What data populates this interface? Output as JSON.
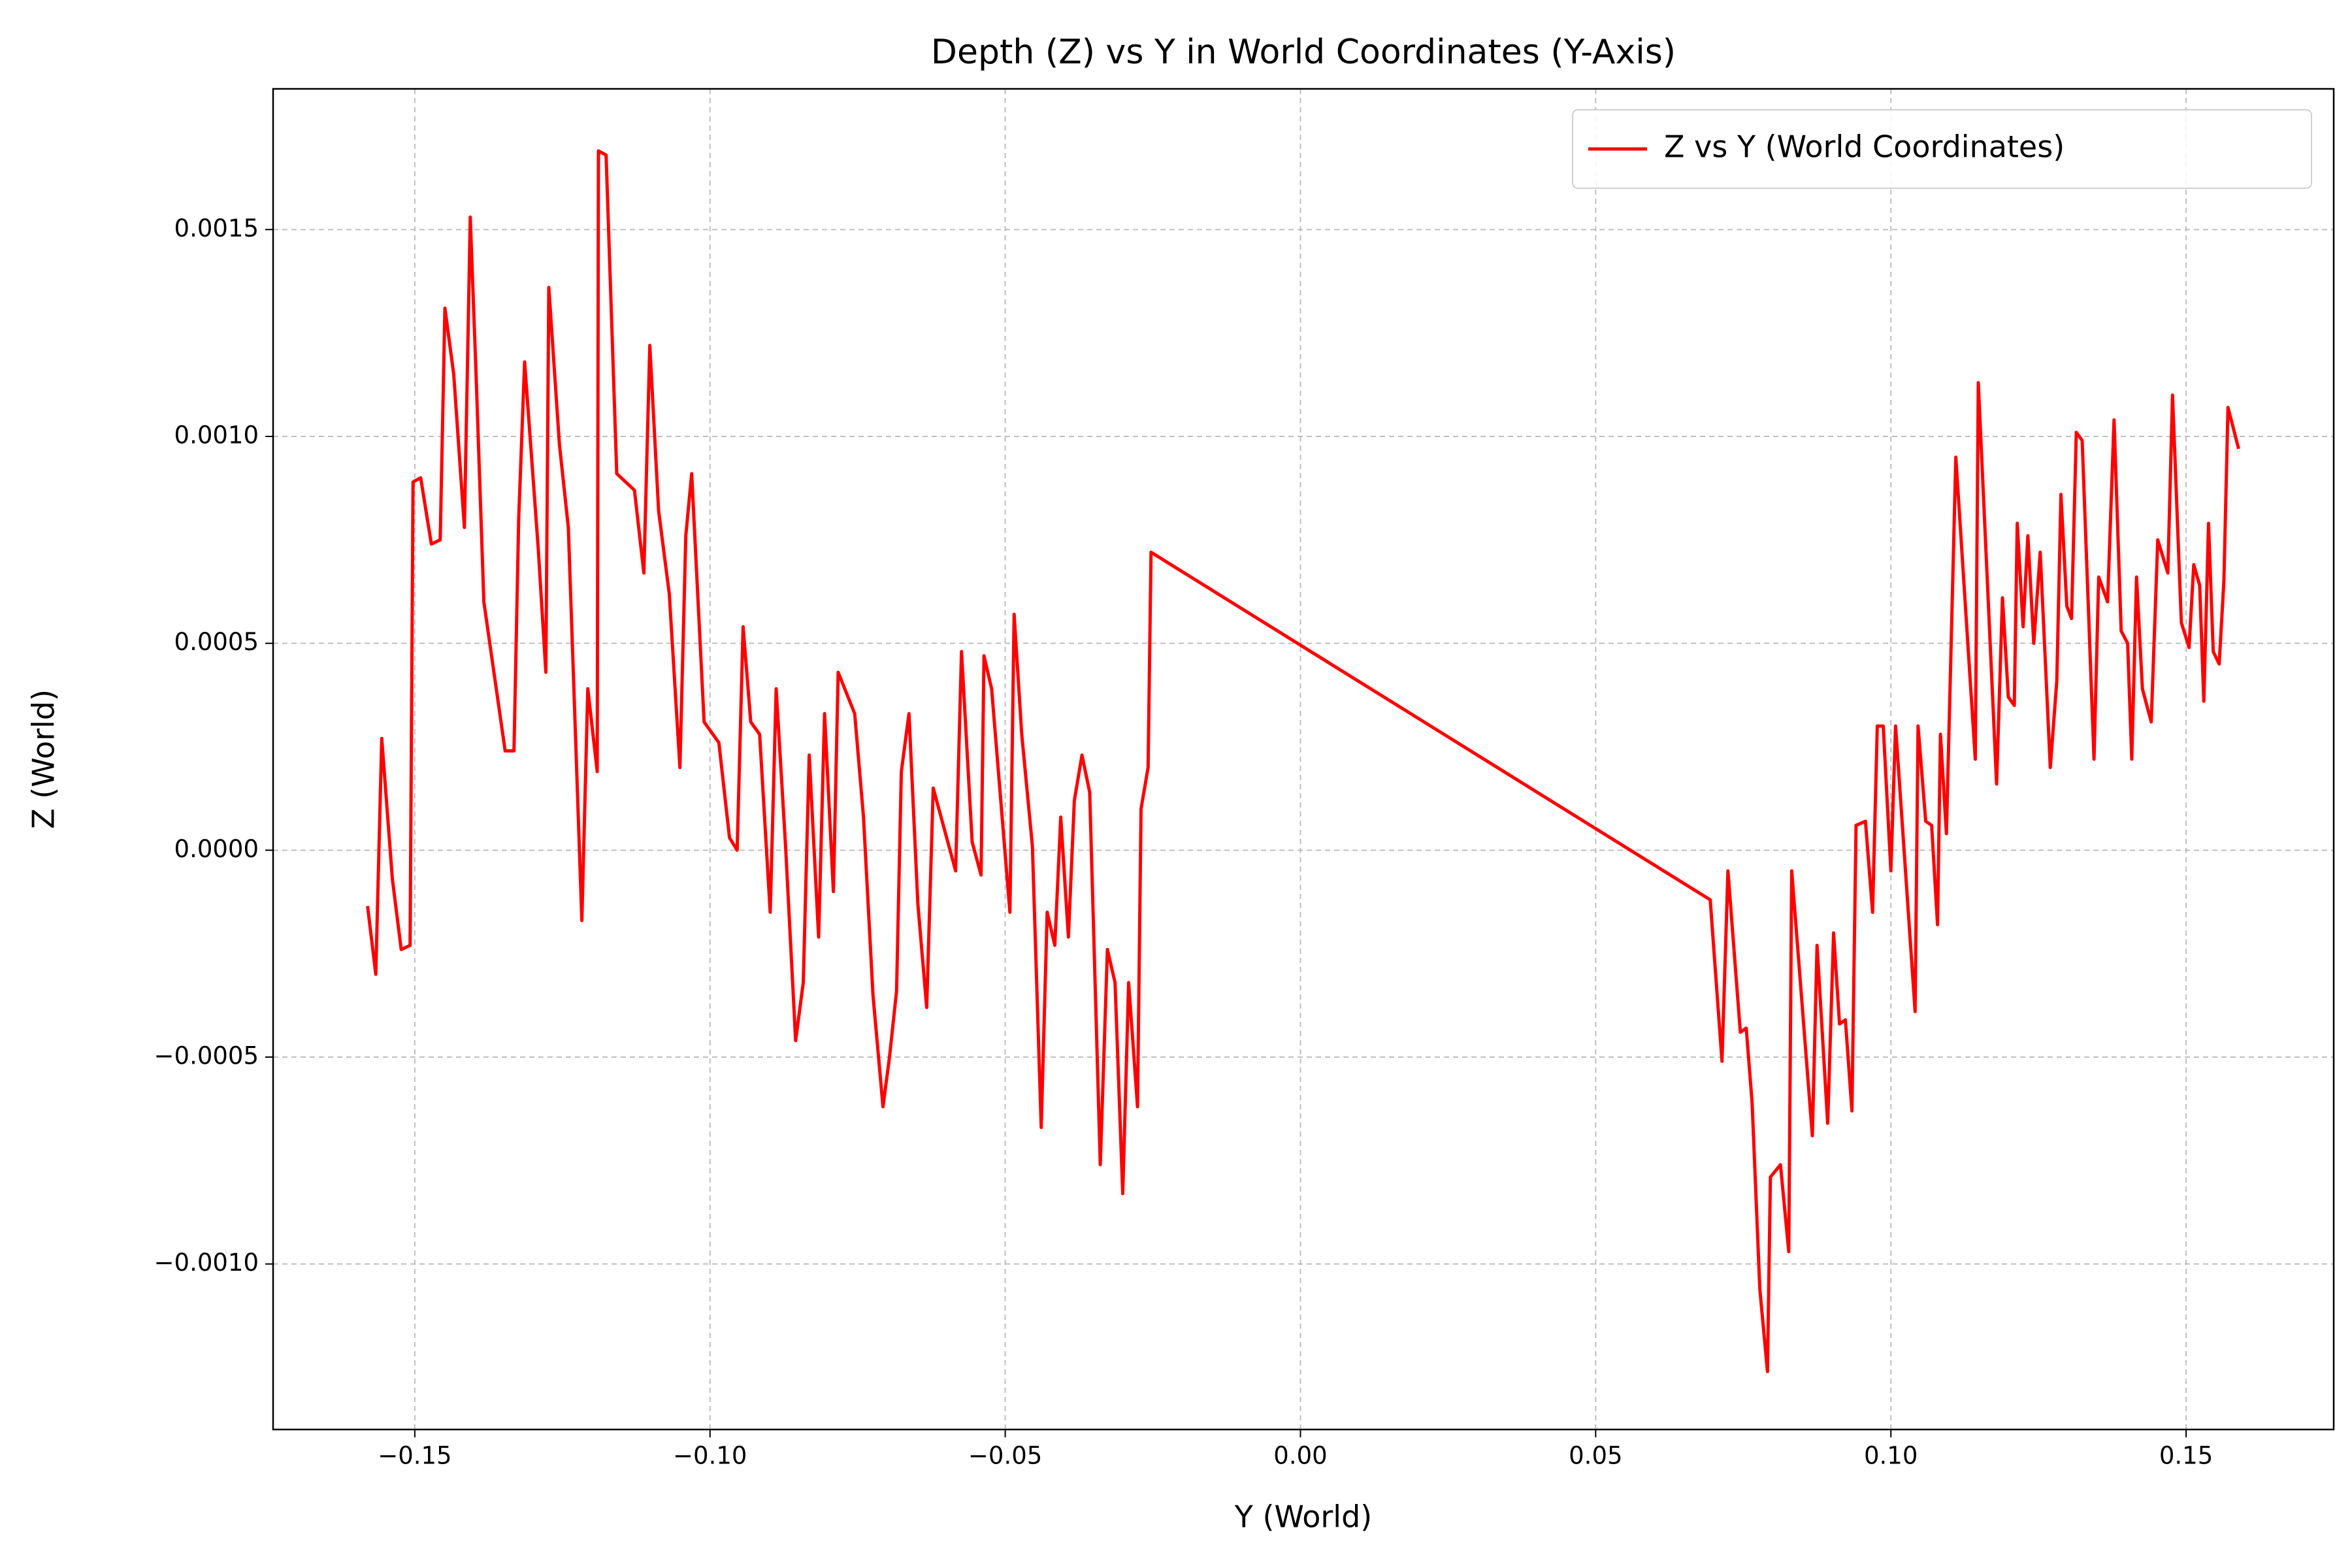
{
  "chart_data": {
    "type": "line",
    "title": "Depth (Z) vs Y in World Coordinates (Y-Axis)",
    "x_label": "Y (World)",
    "y_label": "Z (World)",
    "legend": "upper right",
    "grid": true,
    "xlim": [
      -0.174,
      0.175
    ],
    "ylim": [
      -0.0014,
      0.00184
    ],
    "xticks": [
      {
        "value": -0.15,
        "label": "−0.15"
      },
      {
        "value": -0.1,
        "label": "−0.10"
      },
      {
        "value": -0.05,
        "label": "−0.05"
      },
      {
        "value": 0,
        "label": "0.00"
      },
      0.05,
      {
        "value": 0.1,
        "label": "0.10"
      },
      0.15
    ],
    "yticks": [
      {
        "value": -0.001,
        "label": "−0.0010"
      },
      {
        "value": -0.0005,
        "label": "−0.0005"
      },
      {
        "value": 0,
        "label": "0.0000"
      },
      0.0005,
      {
        "value": 0.001,
        "label": "0.0010"
      },
      0.0015
    ],
    "x": [
      -0.158,
      -0.1566,
      -0.1556,
      -0.1538,
      -0.1523,
      -0.1508,
      -0.1503,
      -0.149,
      -0.1472,
      -0.1457,
      -0.1449,
      -0.1434,
      -0.1416,
      -0.1406,
      -0.1396,
      -0.1383,
      -0.1347,
      -0.1332,
      -0.1324,
      -0.1314,
      -0.1291,
      -0.1278,
      -0.1273,
      -0.1255,
      -0.124,
      -0.1217,
      -0.1207,
      -0.1191,
      -0.1189,
      -0.1176,
      -0.1158,
      -0.1128,
      -0.1112,
      -0.1102,
      -0.1087,
      -0.1069,
      -0.1051,
      -0.1041,
      -0.1031,
      -0.101,
      -0.0985,
      -0.0967,
      -0.0954,
      -0.0944,
      -0.0931,
      -0.0916,
      -0.0898,
      -0.0888,
      -0.0872,
      -0.0855,
      -0.0842,
      -0.0832,
      -0.0816,
      -0.0806,
      -0.0791,
      -0.0783,
      -0.0755,
      -0.074,
      -0.0724,
      -0.0707,
      -0.0696,
      -0.0684,
      -0.0676,
      -0.0663,
      -0.0648,
      -0.0633,
      -0.0622,
      -0.0584,
      -0.0574,
      -0.0556,
      -0.0541,
      -0.0536,
      -0.0523,
      -0.0492,
      -0.0485,
      -0.0472,
      -0.0454,
      -0.0439,
      -0.0429,
      -0.0416,
      -0.0406,
      -0.0393,
      -0.0383,
      -0.037,
      -0.0357,
      -0.0339,
      -0.0327,
      -0.0314,
      -0.0301,
      -0.0291,
      -0.0276,
      -0.027,
      -0.0258,
      -0.0253,
      0.0694,
      0.0714,
      0.0724,
      0.0745,
      0.0755,
      0.0765,
      0.0778,
      0.0791,
      0.0796,
      0.0813,
      0.0827,
      0.0832,
      0.0867,
      0.0875,
      0.0893,
      0.0903,
      0.0913,
      0.0923,
      0.0934,
      0.0941,
      0.0957,
      0.0969,
      0.0977,
      0.0987,
      0.1,
      0.1008,
      0.1041,
      0.1046,
      0.1059,
      0.1069,
      0.1079,
      0.1084,
      0.1094,
      0.111,
      0.1143,
      0.1148,
      0.1179,
      0.1189,
      0.1199,
      0.1209,
      0.1214,
      0.1224,
      0.1232,
      0.1242,
      0.1253,
      0.127,
      0.1281,
      0.1288,
      0.1298,
      0.1306,
      0.1314,
      0.1324,
      0.1344,
      0.1352,
      0.1367,
      0.1378,
      0.139,
      0.1401,
      0.1408,
      0.1416,
      0.1426,
      0.1441,
      0.1452,
      0.1469,
      0.1477,
      0.1492,
      0.1505,
      0.1513,
      0.1523,
      0.153,
      0.1538,
      0.1546,
      0.1556,
      0.1564,
      0.1571,
      0.1589
    ],
    "series": [
      {
        "name": "Z vs Y (World Coordinates)",
        "color": "#ff0000",
        "values": [
          -0.000135,
          -0.0003,
          0.00027,
          -7e-05,
          -0.00024,
          -0.00023,
          0.00089,
          0.0009,
          0.00074,
          0.00075,
          0.00131,
          0.00115,
          0.00078,
          0.00153,
          0.00114,
          0.0006,
          0.00024,
          0.00024,
          0.0008,
          0.00118,
          0.00073,
          0.00043,
          0.00136,
          0.00098,
          0.00078,
          -0.00017,
          0.00039,
          0.00019,
          0.00169,
          0.00168,
          0.00091,
          0.00087,
          0.00067,
          0.00122,
          0.00082,
          0.00062,
          0.0002,
          0.00076,
          0.00091,
          0.00031,
          0.00026,
          3e-05,
          0.0,
          0.00054,
          0.00031,
          0.00028,
          -0.00015,
          0.00039,
          1e-05,
          -0.00046,
          -0.00032,
          0.00023,
          -0.00021,
          0.00033,
          -0.0001,
          0.00043,
          0.00033,
          8e-05,
          -0.00035,
          -0.00062,
          -0.0005,
          -0.00034,
          0.00019,
          0.00033,
          -0.00013,
          -0.00038,
          0.00015,
          -5e-05,
          0.00048,
          2e-05,
          -6e-05,
          0.00047,
          0.00039,
          -0.00015,
          0.00057,
          0.00028,
          1e-05,
          -0.00067,
          -0.00015,
          -0.00023,
          8e-05,
          -0.00021,
          0.00012,
          0.00023,
          0.00014,
          -0.00076,
          -0.00024,
          -0.00032,
          -0.00083,
          -0.00032,
          -0.00062,
          0.0001,
          0.0002,
          0.00072,
          -0.00012,
          -0.00051,
          -5e-05,
          -0.00044,
          -0.00043,
          -0.00061,
          -0.00106,
          -0.00126,
          -0.00079,
          -0.00076,
          -0.00097,
          -5e-05,
          -0.00069,
          -0.00023,
          -0.00066,
          -0.0002,
          -0.00042,
          -0.00041,
          -0.00063,
          6e-05,
          7e-05,
          -0.00015,
          0.0003,
          0.0003,
          -5e-05,
          0.0003,
          -0.00039,
          0.0003,
          7e-05,
          6e-05,
          -0.00018,
          0.00028,
          4e-05,
          0.00095,
          0.00022,
          0.00113,
          0.00016,
          0.00061,
          0.00037,
          0.00035,
          0.00079,
          0.00054,
          0.00076,
          0.0005,
          0.00072,
          0.0002,
          0.00041,
          0.00086,
          0.00059,
          0.00056,
          0.00101,
          0.00099,
          0.00022,
          0.00066,
          0.0006,
          0.00104,
          0.00053,
          0.0005,
          0.00022,
          0.00066,
          0.00039,
          0.00031,
          0.00075,
          0.00067,
          0.0011,
          0.00055,
          0.00049,
          0.00069,
          0.00064,
          0.00036,
          0.00079,
          0.00048,
          0.00045,
          0.00065,
          0.00107,
          0.00097
        ]
      }
    ]
  }
}
